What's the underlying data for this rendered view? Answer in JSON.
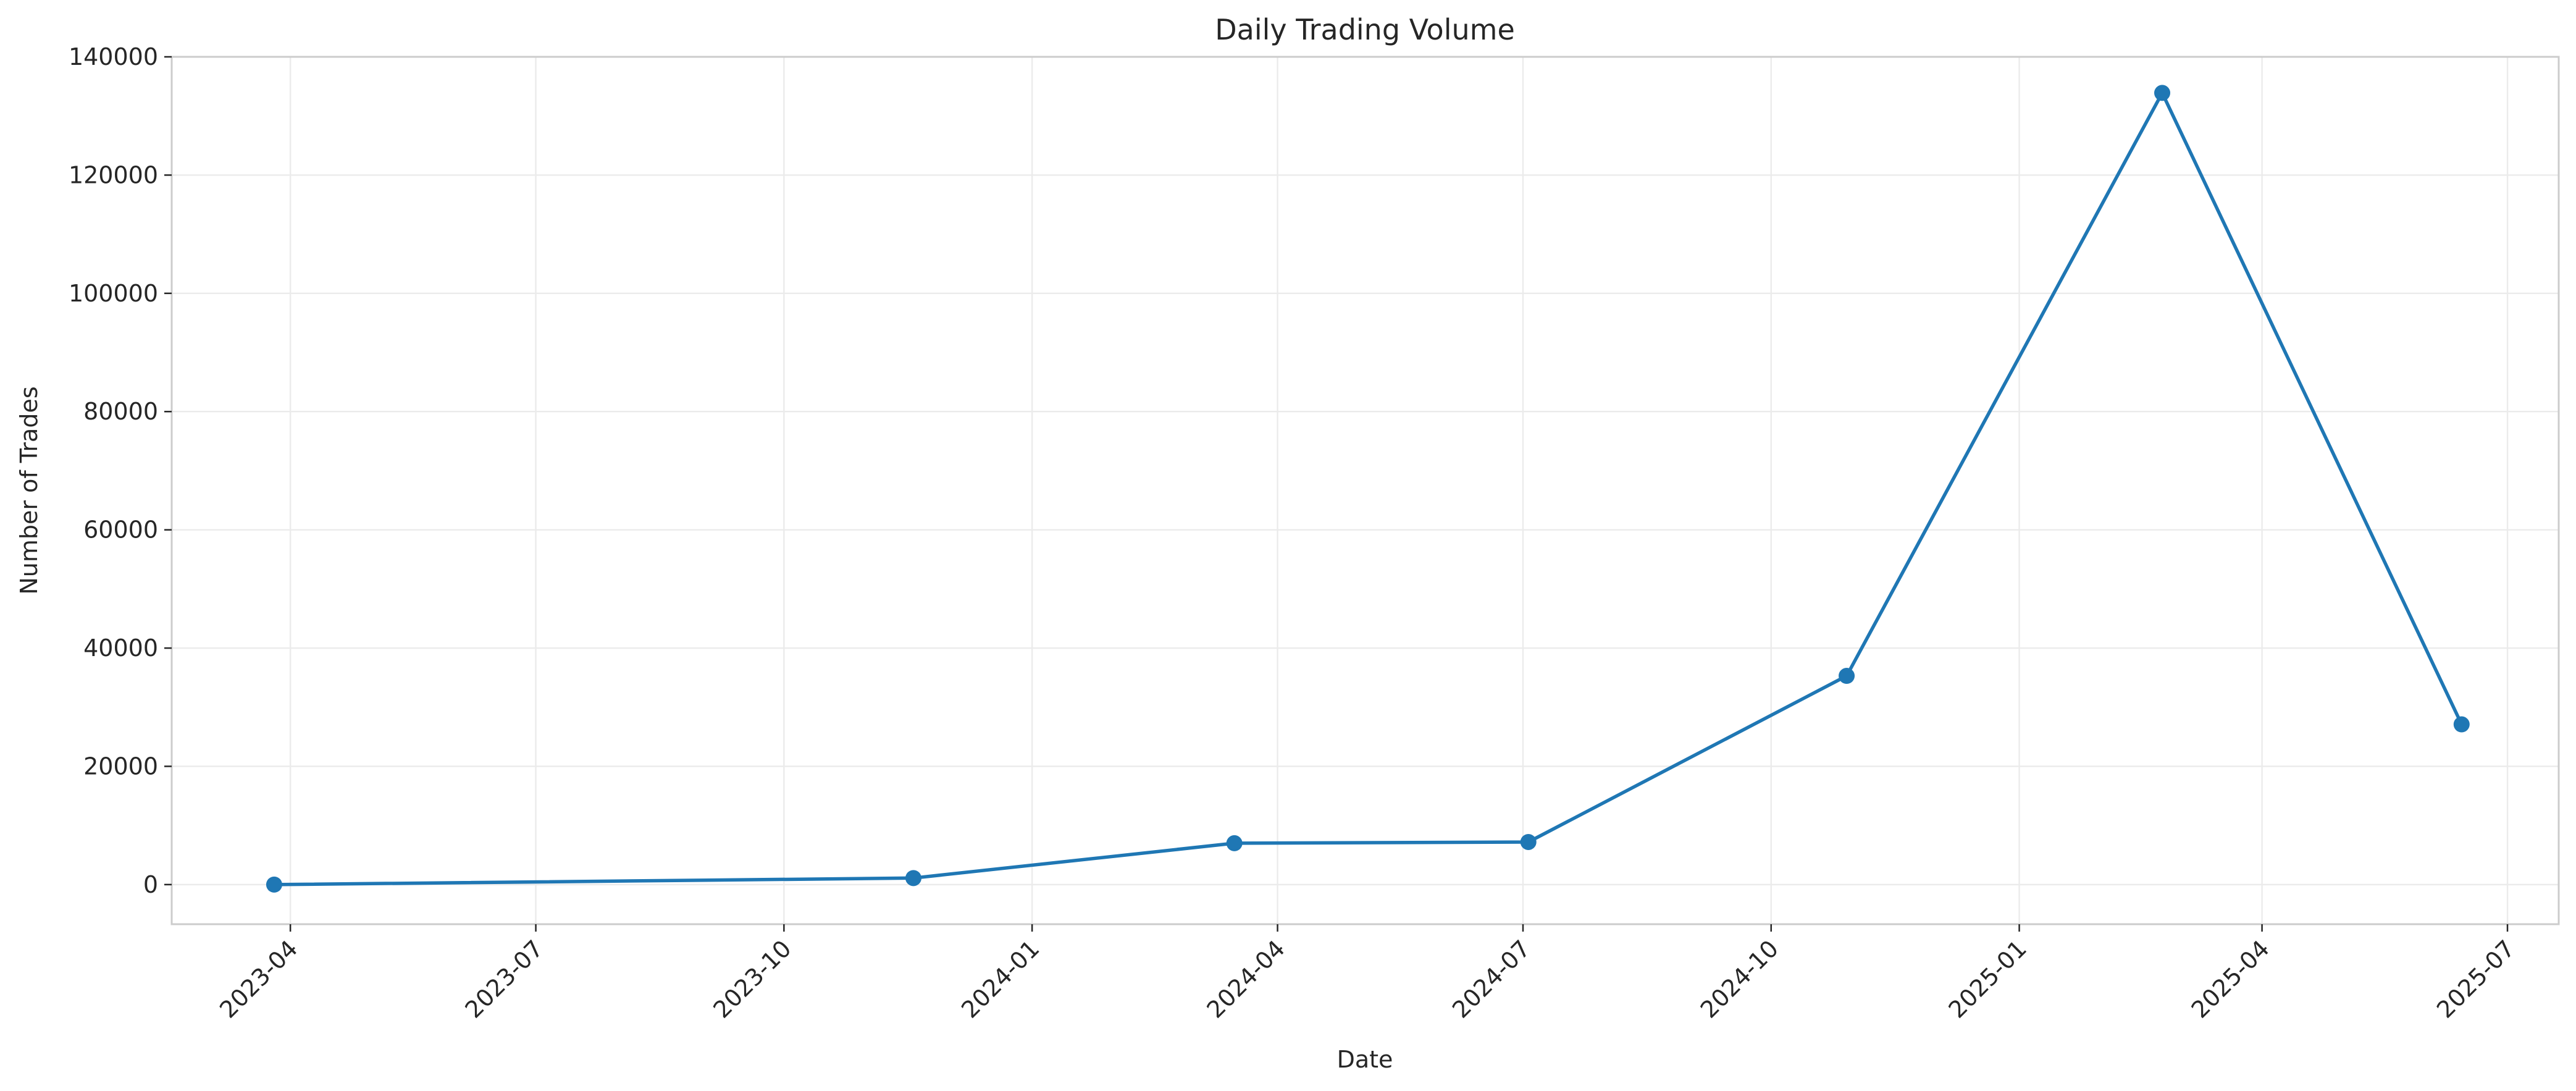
{
  "chart_data": {
    "type": "line",
    "title": "Daily Trading Volume",
    "xlabel": "Date",
    "ylabel": "Number of Trades",
    "x_ticks": [
      "2023-04",
      "2023-07",
      "2023-10",
      "2024-01",
      "2024-04",
      "2024-07",
      "2024-10",
      "2025-01",
      "2025-04",
      "2025-07"
    ],
    "y_ticks": [
      "0",
      "20000",
      "40000",
      "60000",
      "80000",
      "100000",
      "120000",
      "140000"
    ],
    "xlim": [
      "2023-02-16",
      "2025-07-20"
    ],
    "ylim": [
      -6700,
      140000
    ],
    "grid": true,
    "colors": {
      "line": "#1f77b4",
      "marker": "#1f77b4"
    },
    "series": [
      {
        "marker": "circle",
        "points": [
          {
            "x": "2023-03-26",
            "y": 0
          },
          {
            "x": "2023-11-18",
            "y": 1100
          },
          {
            "x": "2024-03-16",
            "y": 7000
          },
          {
            "x": "2024-07-03",
            "y": 7200
          },
          {
            "x": "2024-10-29",
            "y": 35300
          },
          {
            "x": "2025-02-23",
            "y": 133900
          },
          {
            "x": "2025-06-14",
            "y": 27100
          }
        ]
      }
    ]
  }
}
